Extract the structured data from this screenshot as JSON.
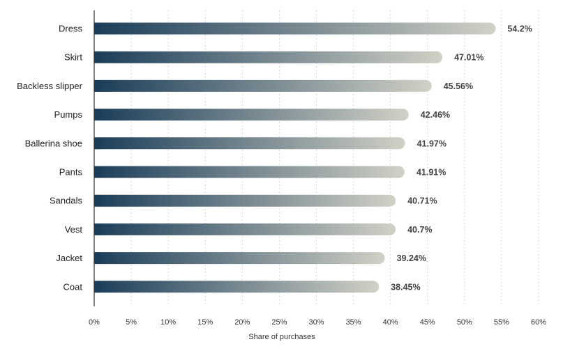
{
  "chart_data": {
    "type": "bar",
    "orientation": "horizontal",
    "categories": [
      "Dress",
      "Skirt",
      "Backless slipper",
      "Pumps",
      "Ballerina shoe",
      "Pants",
      "Sandals",
      "Vest",
      "Jacket",
      "Coat"
    ],
    "values": [
      54.2,
      47.01,
      45.56,
      42.46,
      41.97,
      41.91,
      40.71,
      40.7,
      39.24,
      38.45
    ],
    "value_labels": [
      "54.2%",
      "47.01%",
      "45.56%",
      "42.46%",
      "41.97%",
      "41.91%",
      "40.71%",
      "40.7%",
      "39.24%",
      "38.45%"
    ],
    "title": "",
    "xlabel": "Share of purchases",
    "ylabel": "",
    "xlim": [
      0,
      60
    ],
    "x_ticks": [
      0,
      5,
      10,
      15,
      20,
      25,
      30,
      35,
      40,
      45,
      50,
      55,
      60
    ],
    "x_tick_labels": [
      "0%",
      "5%",
      "10%",
      "15%",
      "20%",
      "25%",
      "30%",
      "35%",
      "40%",
      "45%",
      "50%",
      "55%",
      "60%"
    ],
    "grid": "vertical dotted",
    "colors": {
      "bar_start": "#1b3d59",
      "bar_end": "#d1d1c6",
      "grid": "#c8c8c8",
      "axis": "#333333",
      "category_text": "#222222",
      "value_text": "#444444",
      "tick_text": "#333333"
    }
  }
}
